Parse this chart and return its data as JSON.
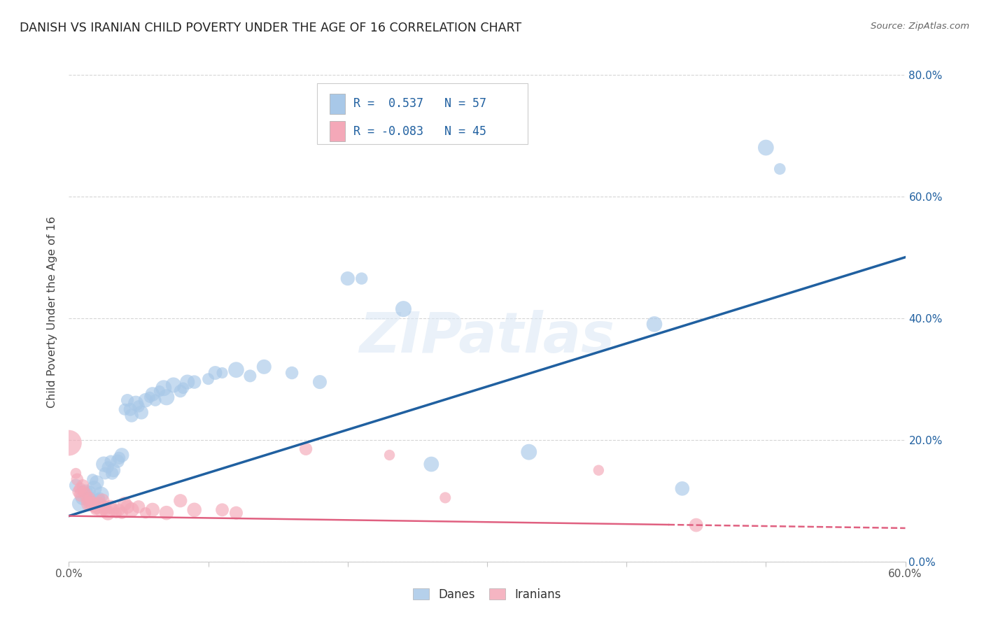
{
  "title": "DANISH VS IRANIAN CHILD POVERTY UNDER THE AGE OF 16 CORRELATION CHART",
  "source": "Source: ZipAtlas.com",
  "ylabel": "Child Poverty Under the Age of 16",
  "legend_label1": "Danes",
  "legend_label2": "Iranians",
  "blue_color": "#a8c8e8",
  "pink_color": "#f4a8b8",
  "blue_line_color": "#2060a0",
  "pink_line_color": "#e06080",
  "title_color": "#222222",
  "source_color": "#666666",
  "xlim": [
    0.0,
    0.6
  ],
  "ylim": [
    0.0,
    0.82
  ],
  "x_tick_vals": [
    0.0,
    0.1,
    0.2,
    0.3,
    0.4,
    0.5,
    0.6
  ],
  "x_tick_labels": [
    "0.0%",
    "",
    "",
    "",
    "",
    "",
    "60.0%"
  ],
  "y_tick_vals": [
    0.0,
    0.2,
    0.4,
    0.6,
    0.8
  ],
  "y_tick_labels": [
    "0.0%",
    "20.0%",
    "40.0%",
    "60.0%",
    "80.0%"
  ],
  "blue_trendline": [
    [
      0.0,
      0.075
    ],
    [
      0.6,
      0.5
    ]
  ],
  "pink_trendline": [
    [
      0.0,
      0.075
    ],
    [
      0.6,
      0.055
    ]
  ],
  "pink_trendline_solid_end": 0.43,
  "blue_scatter": [
    [
      0.005,
      0.125
    ],
    [
      0.008,
      0.095
    ],
    [
      0.01,
      0.105
    ],
    [
      0.012,
      0.115
    ],
    [
      0.015,
      0.115
    ],
    [
      0.015,
      0.105
    ],
    [
      0.017,
      0.135
    ],
    [
      0.018,
      0.12
    ],
    [
      0.02,
      0.13
    ],
    [
      0.021,
      0.1
    ],
    [
      0.022,
      0.105
    ],
    [
      0.023,
      0.11
    ],
    [
      0.025,
      0.16
    ],
    [
      0.026,
      0.145
    ],
    [
      0.028,
      0.155
    ],
    [
      0.03,
      0.165
    ],
    [
      0.031,
      0.145
    ],
    [
      0.032,
      0.15
    ],
    [
      0.035,
      0.165
    ],
    [
      0.036,
      0.17
    ],
    [
      0.038,
      0.175
    ],
    [
      0.04,
      0.25
    ],
    [
      0.042,
      0.265
    ],
    [
      0.044,
      0.25
    ],
    [
      0.045,
      0.24
    ],
    [
      0.048,
      0.26
    ],
    [
      0.05,
      0.255
    ],
    [
      0.052,
      0.245
    ],
    [
      0.055,
      0.265
    ],
    [
      0.058,
      0.27
    ],
    [
      0.06,
      0.275
    ],
    [
      0.062,
      0.265
    ],
    [
      0.065,
      0.28
    ],
    [
      0.068,
      0.285
    ],
    [
      0.07,
      0.27
    ],
    [
      0.075,
      0.29
    ],
    [
      0.08,
      0.28
    ],
    [
      0.082,
      0.285
    ],
    [
      0.085,
      0.295
    ],
    [
      0.09,
      0.295
    ],
    [
      0.1,
      0.3
    ],
    [
      0.105,
      0.31
    ],
    [
      0.11,
      0.31
    ],
    [
      0.12,
      0.315
    ],
    [
      0.13,
      0.305
    ],
    [
      0.14,
      0.32
    ],
    [
      0.16,
      0.31
    ],
    [
      0.18,
      0.295
    ],
    [
      0.2,
      0.465
    ],
    [
      0.21,
      0.465
    ],
    [
      0.24,
      0.415
    ],
    [
      0.26,
      0.16
    ],
    [
      0.33,
      0.18
    ],
    [
      0.42,
      0.39
    ],
    [
      0.44,
      0.12
    ],
    [
      0.5,
      0.68
    ],
    [
      0.51,
      0.645
    ]
  ],
  "pink_scatter": [
    [
      0.0,
      0.195
    ],
    [
      0.005,
      0.145
    ],
    [
      0.006,
      0.135
    ],
    [
      0.007,
      0.115
    ],
    [
      0.008,
      0.12
    ],
    [
      0.009,
      0.11
    ],
    [
      0.01,
      0.125
    ],
    [
      0.011,
      0.115
    ],
    [
      0.012,
      0.11
    ],
    [
      0.013,
      0.1
    ],
    [
      0.014,
      0.095
    ],
    [
      0.015,
      0.105
    ],
    [
      0.016,
      0.095
    ],
    [
      0.017,
      0.095
    ],
    [
      0.018,
      0.09
    ],
    [
      0.019,
      0.085
    ],
    [
      0.02,
      0.09
    ],
    [
      0.022,
      0.095
    ],
    [
      0.023,
      0.085
    ],
    [
      0.024,
      0.1
    ],
    [
      0.025,
      0.085
    ],
    [
      0.026,
      0.09
    ],
    [
      0.027,
      0.085
    ],
    [
      0.028,
      0.08
    ],
    [
      0.03,
      0.09
    ],
    [
      0.032,
      0.085
    ],
    [
      0.034,
      0.08
    ],
    [
      0.036,
      0.085
    ],
    [
      0.038,
      0.08
    ],
    [
      0.04,
      0.095
    ],
    [
      0.042,
      0.09
    ],
    [
      0.045,
      0.085
    ],
    [
      0.05,
      0.09
    ],
    [
      0.055,
      0.08
    ],
    [
      0.06,
      0.085
    ],
    [
      0.07,
      0.08
    ],
    [
      0.08,
      0.1
    ],
    [
      0.09,
      0.085
    ],
    [
      0.11,
      0.085
    ],
    [
      0.12,
      0.08
    ],
    [
      0.17,
      0.185
    ],
    [
      0.23,
      0.175
    ],
    [
      0.27,
      0.105
    ],
    [
      0.38,
      0.15
    ],
    [
      0.45,
      0.06
    ]
  ],
  "blue_sizes_base": 200,
  "pink_sizes_base": 180,
  "large_pink_size": 800
}
